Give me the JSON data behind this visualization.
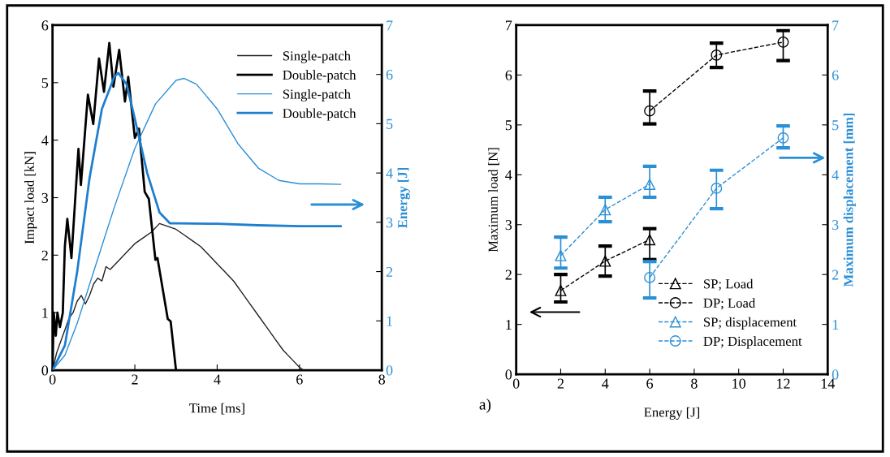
{
  "chart_data": [
    {
      "type": "line",
      "xlabel": "Time [ms]",
      "ylabel": "Impact load [kN]",
      "y2label": "Energy [J]",
      "xlim": [
        0,
        8
      ],
      "xticks": [
        0,
        2,
        4,
        6,
        8
      ],
      "ylim": [
        0,
        6
      ],
      "yticks": [
        0,
        1,
        2,
        3,
        4,
        5,
        6
      ],
      "y2lim": [
        0,
        7
      ],
      "y2ticks": [
        0,
        1,
        2,
        3,
        4,
        5,
        6,
        7
      ],
      "grid": false,
      "legend": "top right",
      "marker": "none",
      "line_style": "solid",
      "series": [
        {
          "name": "Single-patch",
          "color": "#222222",
          "x": [
            0,
            0.1,
            0.2,
            0.3,
            0.4,
            0.5,
            0.6,
            0.7,
            0.8,
            0.9,
            1.0,
            1.1,
            1.2,
            1.3,
            1.4,
            1.6,
            1.8,
            2.0,
            2.2,
            2.4,
            2.6,
            2.8,
            3.0,
            3.2,
            3.4,
            3.6,
            3.8,
            4.0,
            4.2,
            4.4,
            4.6,
            4.8,
            5.0,
            5.2,
            5.4,
            5.6,
            5.8,
            6.0,
            6.1
          ],
          "values": [
            0,
            0.3,
            0.5,
            0.7,
            0.9,
            1.0,
            1.2,
            1.3,
            1.15,
            1.3,
            1.5,
            1.6,
            1.55,
            1.8,
            1.75,
            1.9,
            2.05,
            2.2,
            2.3,
            2.4,
            2.55,
            2.5,
            2.45,
            2.35,
            2.25,
            2.15,
            2.0,
            1.85,
            1.7,
            1.55,
            1.35,
            1.15,
            0.95,
            0.75,
            0.55,
            0.35,
            0.2,
            0.05,
            0
          ]
        },
        {
          "name": "Double-patch",
          "color": "#000000",
          "x": [
            0,
            0.03,
            0.08,
            0.12,
            0.18,
            0.25,
            0.3,
            0.36,
            0.46,
            0.63,
            0.69,
            0.86,
            0.99,
            1.13,
            1.25,
            1.38,
            1.48,
            1.62,
            1.76,
            1.84,
            2.0,
            2.1,
            2.24,
            2.34,
            2.5,
            2.55,
            2.8,
            2.87,
            3.0
          ],
          "values": [
            0,
            1.0,
            0.6,
            1.0,
            0.75,
            1.0,
            2.15,
            2.63,
            1.95,
            3.85,
            3.22,
            4.79,
            4.28,
            5.42,
            4.84,
            5.69,
            4.93,
            5.57,
            4.67,
            5.1,
            4.04,
            4.2,
            3.1,
            2.98,
            1.92,
            1.95,
            0.89,
            0.85,
            0
          ]
        },
        {
          "name": "Single-patch",
          "color": "#2b8fd6",
          "axis": "y2",
          "x": [
            0,
            0.3,
            0.6,
            1.0,
            1.5,
            2.0,
            2.5,
            3.0,
            3.2,
            3.5,
            4.0,
            4.5,
            5.0,
            5.5,
            6.0,
            6.5,
            7.0
          ],
          "values": [
            0,
            0.3,
            0.95,
            2.0,
            3.3,
            4.5,
            5.4,
            5.88,
            5.92,
            5.8,
            5.3,
            4.6,
            4.1,
            3.85,
            3.78,
            3.78,
            3.77
          ]
        },
        {
          "name": "Double-patch",
          "color": "#1f7fcf",
          "axis": "y2",
          "x": [
            0,
            0.3,
            0.6,
            0.9,
            1.2,
            1.5,
            1.6,
            1.8,
            2.0,
            2.3,
            2.6,
            2.85,
            3.0,
            4.0,
            5.0,
            6.0,
            7.0
          ],
          "values": [
            0,
            0.5,
            2.0,
            3.9,
            5.3,
            5.95,
            6.03,
            5.8,
            5.1,
            4.0,
            3.2,
            2.98,
            2.98,
            2.97,
            2.94,
            2.92,
            2.92
          ]
        }
      ]
    },
    {
      "type": "line",
      "xlabel": "Energy [J]",
      "ylabel": "Maximum load [N]",
      "y2label": "Maximum displacement [mm]",
      "xlim": [
        0,
        14
      ],
      "xticks": [
        0,
        2,
        4,
        6,
        8,
        10,
        12,
        14
      ],
      "ylim": [
        0,
        7
      ],
      "yticks": [
        0,
        1,
        2,
        3,
        4,
        5,
        6,
        7
      ],
      "y2lim": [
        0,
        7
      ],
      "y2ticks": [
        0,
        1,
        2,
        3,
        4,
        5,
        6,
        7
      ],
      "grid": false,
      "legend": "bottom right",
      "line_style": "dashed",
      "annotations": [
        "a)"
      ],
      "series": [
        {
          "name": "SP; Load",
          "color": "#000000",
          "marker": "triangle",
          "x": [
            2,
            4,
            6
          ],
          "values": [
            1.68,
            2.27,
            2.7
          ],
          "errors": [
            [
              1.45,
              2.0
            ],
            [
              1.97,
              2.57
            ],
            [
              2.3,
              2.92
            ]
          ]
        },
        {
          "name": "DP; Load",
          "color": "#000000",
          "marker": "circle",
          "x": [
            6,
            9,
            12
          ],
          "values": [
            5.28,
            6.4,
            6.66
          ],
          "errors": [
            [
              5.02,
              5.68
            ],
            [
              6.15,
              6.64
            ],
            [
              6.29,
              6.89
            ]
          ]
        },
        {
          "name": "SP; displacement",
          "color": "#2b8fd6",
          "marker": "triangle",
          "axis": "y2",
          "x": [
            2,
            4,
            6
          ],
          "values": [
            2.38,
            3.3,
            3.81
          ],
          "errors": [
            [
              2.13,
              2.75
            ],
            [
              3.06,
              3.55
            ],
            [
              3.55,
              4.17
            ]
          ]
        },
        {
          "name": "DP; Displacement",
          "color": "#2b8fd6",
          "marker": "circle",
          "axis": "y2",
          "x": [
            6,
            9,
            12
          ],
          "values": [
            1.94,
            3.73,
            4.74
          ],
          "errors": [
            [
              1.53,
              2.26
            ],
            [
              3.32,
              4.09
            ],
            [
              4.54,
              4.98
            ]
          ]
        }
      ]
    }
  ]
}
